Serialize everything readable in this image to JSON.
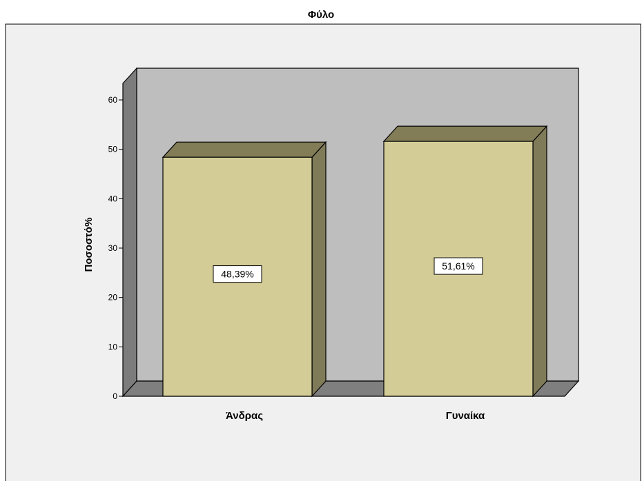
{
  "chart_data": {
    "type": "bar",
    "title": "Φύλο",
    "xlabel": "",
    "ylabel": "Ποσοστό%",
    "categories": [
      "Άνδρας",
      "Γυναίκα"
    ],
    "values": [
      48.39,
      51.61
    ],
    "data_labels": [
      "48,39%",
      "51,61%"
    ],
    "ylim": [
      0,
      60
    ],
    "yticks": [
      0,
      10,
      20,
      30,
      40,
      50,
      60
    ],
    "grid": false,
    "legend": "none",
    "three_d": true,
    "colors": {
      "bar_front": "#d3cc96",
      "bar_top": "#827c57",
      "bar_side": "#7f7a58",
      "wall_back": "#bebebe",
      "wall_left": "#7c7c7c",
      "floor": "#7f7f7f",
      "panel_bg": "#f0f0f0",
      "outline": "#000000"
    }
  }
}
